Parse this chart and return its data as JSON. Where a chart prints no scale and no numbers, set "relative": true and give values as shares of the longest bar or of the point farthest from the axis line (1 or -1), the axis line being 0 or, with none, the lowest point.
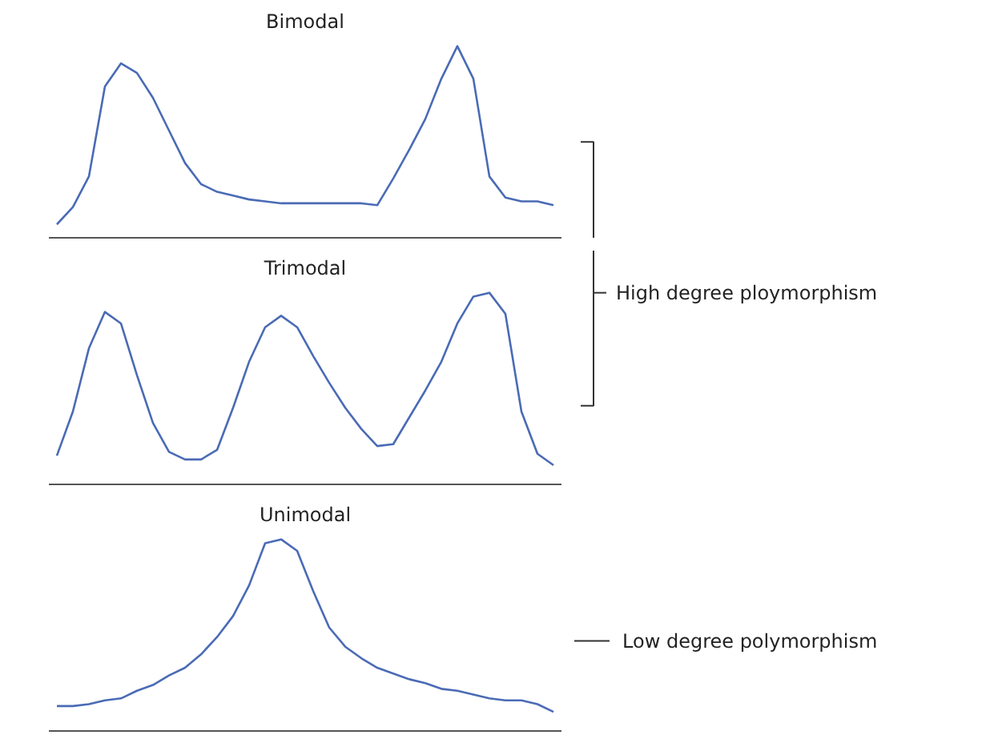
{
  "chart_data": [
    {
      "type": "line",
      "title": "Bimodal",
      "relative": true,
      "categories": [
        null,
        null,
        null,
        null,
        null,
        null,
        null,
        null,
        null,
        null,
        null,
        null,
        null,
        null,
        null,
        null,
        null,
        null,
        null,
        null,
        null,
        null,
        null,
        null,
        null,
        null,
        null,
        null,
        null,
        null,
        null,
        null
      ],
      "series": [
        {
          "color": "#4a6bb5",
          "values": [
            0.07,
            0.16,
            0.32,
            0.79,
            0.91,
            0.86,
            0.73,
            0.56,
            0.39,
            0.28,
            0.24,
            0.22,
            0.2,
            0.19,
            0.18,
            0.18,
            0.18,
            0.18,
            0.18,
            0.18,
            0.17,
            0.31,
            0.46,
            0.62,
            0.83,
            1,
            0.83,
            0.32,
            0.21,
            0.19,
            0.19,
            0.17
          ]
        }
      ]
    },
    {
      "type": "line",
      "title": "Trimodal",
      "relative": true,
      "annotations": [
        "High degree ploymorphism"
      ],
      "categories": [
        null,
        null,
        null,
        null,
        null,
        null,
        null,
        null,
        null,
        null,
        null,
        null,
        null,
        null,
        null,
        null,
        null,
        null,
        null,
        null,
        null,
        null,
        null,
        null,
        null,
        null,
        null,
        null,
        null,
        null,
        null,
        null
      ],
      "series": [
        {
          "color": "#4a6bb5",
          "values": [
            0.15,
            0.38,
            0.71,
            0.9,
            0.84,
            0.57,
            0.32,
            0.17,
            0.13,
            0.13,
            0.18,
            0.4,
            0.64,
            0.82,
            0.88,
            0.82,
            0.67,
            0.53,
            0.4,
            0.29,
            0.2,
            0.21,
            0.35,
            0.49,
            0.64,
            0.84,
            0.98,
            1,
            0.89,
            0.38,
            0.16,
            0.1
          ]
        }
      ]
    },
    {
      "type": "line",
      "title": "Unimodal",
      "relative": true,
      "annotations": [
        "Low degree polymorphism"
      ],
      "categories": [
        null,
        null,
        null,
        null,
        null,
        null,
        null,
        null,
        null,
        null,
        null,
        null,
        null,
        null,
        null,
        null,
        null,
        null,
        null,
        null,
        null,
        null,
        null,
        null,
        null,
        null,
        null,
        null,
        null,
        null,
        null,
        null
      ],
      "series": [
        {
          "color": "#4a6bb5",
          "values": [
            0.13,
            0.13,
            0.14,
            0.16,
            0.17,
            0.21,
            0.24,
            0.29,
            0.33,
            0.4,
            0.49,
            0.6,
            0.76,
            0.98,
            1,
            0.94,
            0.73,
            0.54,
            0.44,
            0.38,
            0.33,
            0.3,
            0.27,
            0.25,
            0.22,
            0.21,
            0.19,
            0.17,
            0.16,
            0.16,
            0.14,
            0.1
          ]
        }
      ]
    }
  ]
}
